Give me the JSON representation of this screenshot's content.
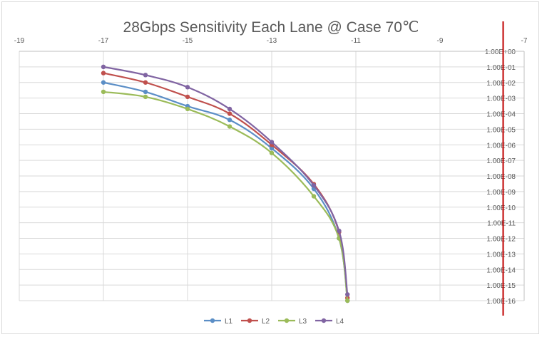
{
  "chart_data": {
    "type": "line",
    "title": "28Gbps Sensitivity Each Lane @ Case 70℃",
    "xlabel": "",
    "ylabel": "",
    "xlim": [
      -19,
      -7
    ],
    "x_ticks": [
      "-19",
      "-17",
      "-15",
      "-13",
      "-11",
      "-9",
      "-7"
    ],
    "y_scale": "log",
    "ylim": [
      1e-16,
      1
    ],
    "y_ticks": [
      "1.00E+00",
      "1.00E-01",
      "1.00E-02",
      "1.00E-03",
      "1.00E-04",
      "1.00E-05",
      "1.00E-06",
      "1.00E-07",
      "1.00E-08",
      "1.00E-09",
      "1.00E-10",
      "1.00E-11",
      "1.00E-12",
      "1.00E-13",
      "1.00E-14",
      "1.00E-15",
      "1.00E-16"
    ],
    "grid": true,
    "legend_position": "bottom",
    "reference_line": {
      "x": -7.5,
      "color": "#c00000"
    },
    "series": [
      {
        "name": "L1",
        "color": "#5b8ec6",
        "x": [
          -17,
          -16,
          -15,
          -14,
          -13,
          -12,
          -11.4,
          -11.2
        ],
        "y": [
          0.01,
          0.0025,
          0.0003,
          4e-05,
          6e-07,
          1.5e-09,
          1e-12,
          1e-16
        ]
      },
      {
        "name": "L2",
        "color": "#c0504d",
        "x": [
          -17,
          -16,
          -15,
          -14,
          -13,
          -12,
          -11.4,
          -11.2
        ],
        "y": [
          0.04,
          0.01,
          0.0012,
          0.0001,
          1e-06,
          3e-09,
          2.5e-12,
          1.5e-16
        ]
      },
      {
        "name": "L3",
        "color": "#9bbb59",
        "x": [
          -17,
          -16,
          -15,
          -14,
          -13,
          -12,
          -11.4,
          -11.2
        ],
        "y": [
          0.0025,
          0.0012,
          0.0002,
          1.5e-05,
          3e-07,
          5e-10,
          1e-12,
          1e-16
        ]
      },
      {
        "name": "L4",
        "color": "#8064a2",
        "x": [
          -17,
          -16,
          -15,
          -14,
          -13,
          -12,
          -11.4,
          -11.2
        ],
        "y": [
          0.1,
          0.03,
          0.005,
          0.0002,
          1.5e-06,
          2.5e-09,
          3e-12,
          2.5e-16
        ]
      }
    ]
  }
}
